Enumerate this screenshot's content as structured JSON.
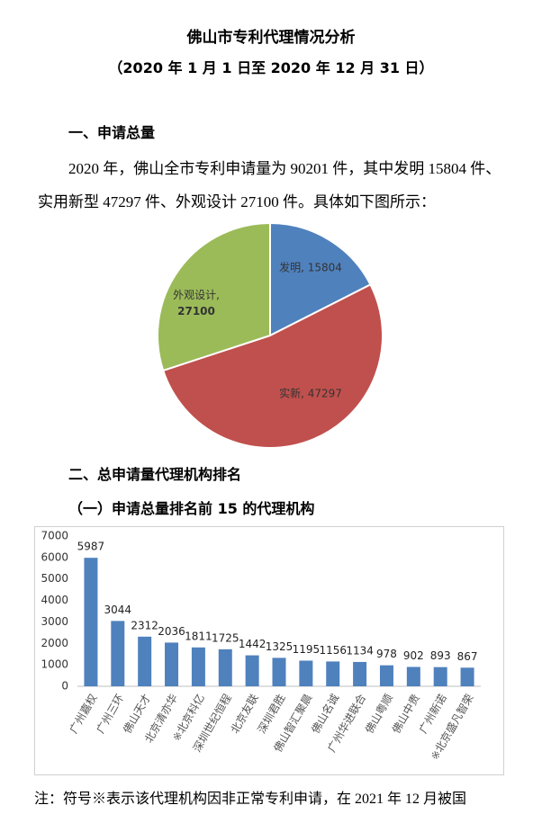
{
  "header": {
    "title": "佛山市专利代理情况分析",
    "subtitle": "（2020 年 1 月 1 日至 2020 年 12 月 31 日）"
  },
  "section1": {
    "heading": "一、申请总量",
    "paragraph_lines": [
      "2020 年，佛山全市专利申请量为 90201 件，其中发明 15804 件、",
      "实用新型 47297 件、外观设计 27100 件。具体如下图所示："
    ]
  },
  "section2": {
    "heading": "二、总申请量代理机构排名",
    "subheading": "（一）申请总量排名前 15 的代理机构"
  },
  "note": "注：符号※表示该代理机构因非正常专利申请，在 2021 年 12 月被国",
  "chart_data": [
    {
      "type": "pie",
      "values": [
        15804,
        47297,
        27100
      ],
      "value_labels": [
        "发明, 15804",
        "实新, 47297",
        "外观设计, 27100"
      ],
      "colors": [
        "#4f81bd",
        "#c0504d",
        "#9bbb59"
      ]
    },
    {
      "type": "bar",
      "categories": [
        "广州嘉权",
        "广州三环",
        "佛山天才",
        "北京清亦华",
        "※北京科亿",
        "深圳世纪恒程",
        "北京友联",
        "深圳君胜",
        "佛山智汇聚晨",
        "佛山名诚",
        "广州华进联合",
        "佛山粤顺",
        "佛山中贵",
        "广州新诺",
        "※北京盛凡智荣"
      ],
      "values": [
        5987,
        3044,
        2312,
        2036,
        1811,
        1725,
        1442,
        1325,
        1195,
        1156,
        1134,
        978,
        902,
        893,
        867
      ],
      "color": "#4f81bd",
      "ylim": [
        0,
        7000
      ],
      "yticks": [
        0,
        1000,
        2000,
        3000,
        4000,
        5000,
        6000,
        7000
      ],
      "grid": false
    }
  ]
}
